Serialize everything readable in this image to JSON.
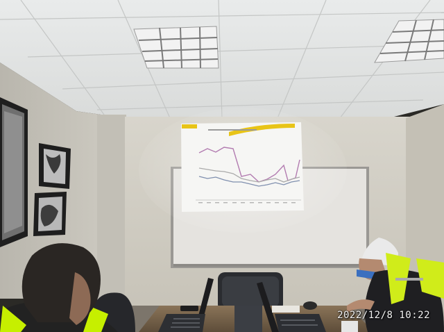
{
  "photo": {
    "timestamp": "2022/12/8 10:22"
  },
  "projection": {
    "content": "line-chart-slide",
    "accent_color": "#e8c417",
    "series_colors": [
      "#b27bb0",
      "#aaaaaa",
      "#7f8fae"
    ]
  },
  "room": {
    "ceiling_color": "#e4e6e6",
    "wall_color": "#d3d0c6",
    "vest_color": "#c8f000"
  }
}
